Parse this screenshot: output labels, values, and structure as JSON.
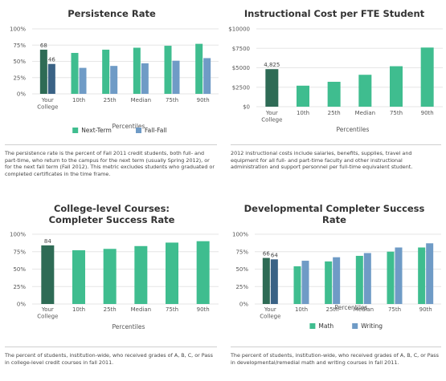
{
  "colors": {
    "your_college_primary": "#2e6b55",
    "your_college_secondary": "#3a6285",
    "primary": "#3fbd8f",
    "secondary": "#6f9bc6",
    "grid": "#e6e6e6",
    "axis_text": "#555555"
  },
  "panels": [
    {
      "id": "persistence",
      "title_lines": [
        "Persistence Rate"
      ],
      "description": "The persistence rate is the percent of Fall 2011 credit students, both full- and part-time, who return to the campus for the next term (usually Spring 2012), or for the next fall term (Fall 2012). This metric excludes students who graduated or completed certificates in the time frame."
    },
    {
      "id": "instructional-cost",
      "title_lines": [
        "Instructional Cost per FTE Student"
      ],
      "description": "2012 instructional costs include salaries, benefits, supplies, travel and equipment for all full- and part-time faculty and other instructional administration and support personnel per full-time equivalent student."
    },
    {
      "id": "college-level",
      "title_lines": [
        "College-level Courses:",
        "Completer Success Rate"
      ],
      "description": "The percent of students, institution-wide, who received grades of A, B, C, or Pass in college-level credit courses in fall 2011."
    },
    {
      "id": "developmental",
      "title_lines": [
        "Developmental Completer Success",
        "Rate"
      ],
      "description": "The percent of students, institution-wide, who received grades of A, B, C, or Pass in developmental/remedial math and writing courses in fall 2011."
    }
  ],
  "chart_data": [
    {
      "type": "bar",
      "title": "Persistence Rate",
      "xlabel": "Percentiles",
      "categories": [
        "Your\nCollege",
        "10th",
        "25th",
        "Median",
        "75th",
        "90th"
      ],
      "series": [
        {
          "name": "Next-Term",
          "values": [
            68,
            63,
            68,
            71,
            74,
            77
          ]
        },
        {
          "name": "Fall-Fall",
          "values": [
            46,
            40,
            43,
            47,
            51,
            55
          ]
        }
      ],
      "data_labels": {
        "0": [
          "68",
          "46"
        ]
      },
      "yticks": [
        "0%",
        "25%",
        "50%",
        "75%",
        "100%"
      ],
      "ylim": [
        0,
        100
      ],
      "grid": true,
      "legend": "bottom"
    },
    {
      "type": "bar",
      "title": "Instructional Cost per FTE Student",
      "xlabel": "Percentiles",
      "categories": [
        "Your\nCollege",
        "10th",
        "25th",
        "Median",
        "75th",
        "90th"
      ],
      "series": [
        {
          "name": "",
          "values": [
            4825,
            2700,
            3200,
            4100,
            5200,
            7600
          ]
        }
      ],
      "data_labels": {
        "0": [
          "4,825"
        ]
      },
      "yticks": [
        "$0",
        "$2500",
        "$5000",
        "$7500",
        "$10000"
      ],
      "ylim": [
        0,
        10000
      ],
      "grid": true,
      "legend": "none"
    },
    {
      "type": "bar",
      "title": "College-level Courses: Completer Success Rate",
      "xlabel": "Percentiles",
      "categories": [
        "Your\nCollege",
        "10th",
        "25th",
        "Median",
        "75th",
        "90th"
      ],
      "series": [
        {
          "name": "",
          "values": [
            84,
            77,
            79,
            83,
            88,
            90
          ]
        }
      ],
      "data_labels": {
        "0": [
          "84"
        ]
      },
      "yticks": [
        "0%",
        "25%",
        "50%",
        "75%",
        "100%"
      ],
      "ylim": [
        0,
        100
      ],
      "grid": true,
      "legend": "none"
    },
    {
      "type": "bar",
      "title": "Developmental Completer Success Rate",
      "xlabel": "Percentiles",
      "categories": [
        "Your\nCollege",
        "10th",
        "25th",
        "Median",
        "75th",
        "90th"
      ],
      "series": [
        {
          "name": "Math",
          "values": [
            66,
            54,
            61,
            69,
            75,
            81
          ]
        },
        {
          "name": "Writing",
          "values": [
            64,
            62,
            67,
            73,
            81,
            87
          ]
        }
      ],
      "data_labels": {
        "0": [
          "66",
          "64"
        ]
      },
      "yticks": [
        "0%",
        "25%",
        "50%",
        "75%",
        "100%"
      ],
      "ylim": [
        0,
        100
      ],
      "grid": true,
      "legend": "bottom"
    }
  ]
}
